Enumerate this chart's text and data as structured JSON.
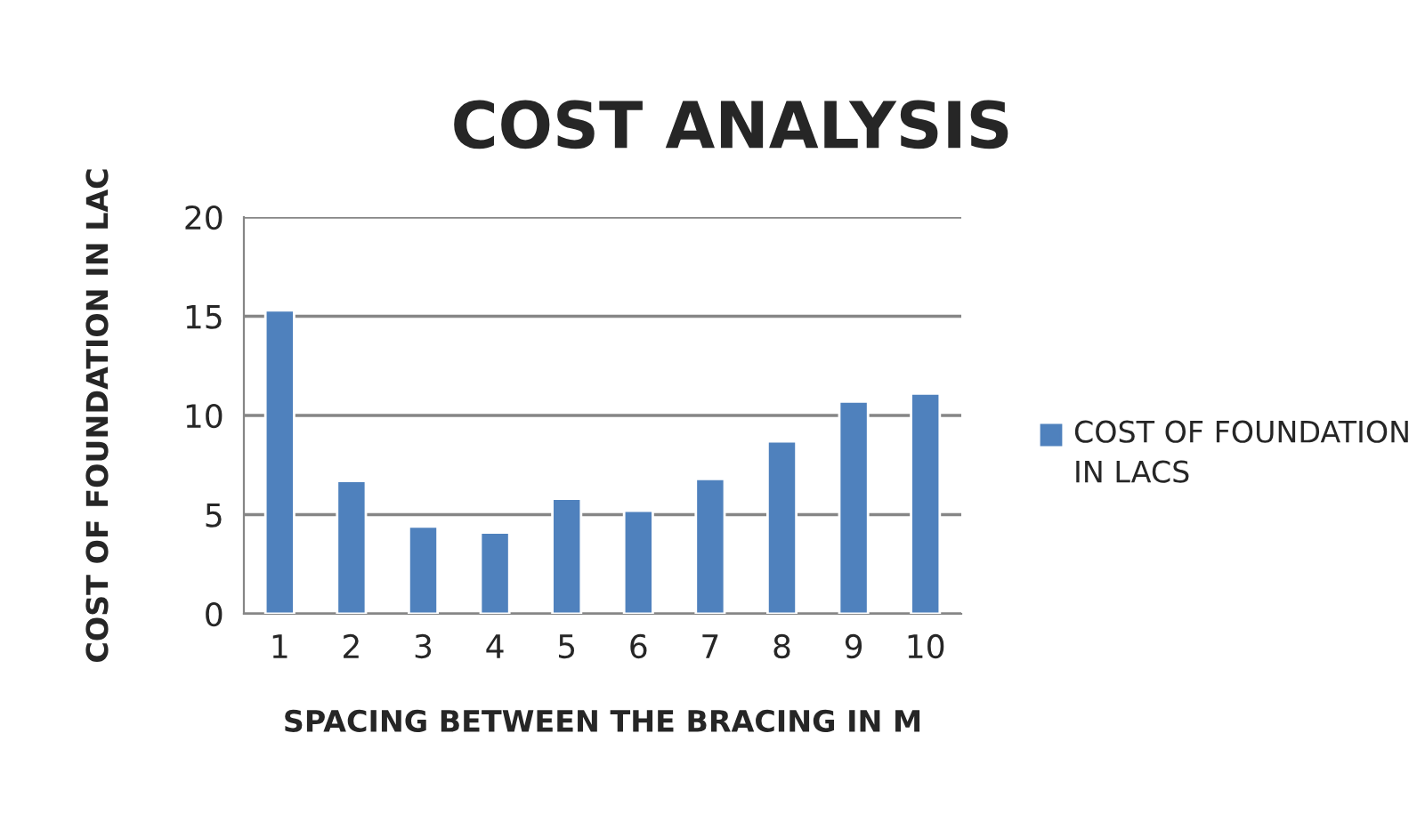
{
  "chart_data": {
    "type": "bar",
    "title": "COST ANALYSIS",
    "xlabel": "SPACING BETWEEN THE BRACING IN M",
    "ylabel": "COST OF FOUNDATION IN LAC",
    "categories": [
      "1",
      "2",
      "3",
      "4",
      "5",
      "6",
      "7",
      "8",
      "9",
      "10"
    ],
    "series": [
      {
        "name": "COST OF FOUNDATION IN LACS",
        "color": "#4f81bd",
        "values": [
          15.3,
          6.7,
          4.4,
          4.1,
          5.8,
          5.2,
          6.8,
          8.7,
          10.7,
          11.1
        ]
      }
    ],
    "ylim": [
      0,
      20
    ],
    "yticks": [
      0,
      5,
      10,
      15,
      20
    ],
    "grid": "y",
    "legend": "right"
  }
}
